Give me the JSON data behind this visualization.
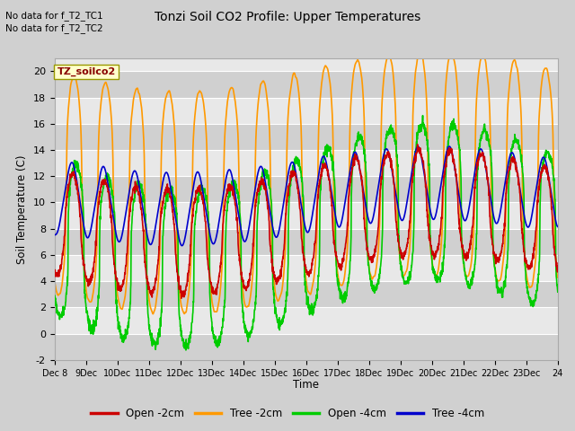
{
  "title": "Tonzi Soil CO2 Profile: Upper Temperatures",
  "ylabel": "Soil Temperature (C)",
  "xlabel": "Time",
  "note1": "No data for f_T2_TC1",
  "note2": "No data for f_T2_TC2",
  "dataset_label": "TZ_soilco2",
  "ylim": [
    -2,
    21
  ],
  "yticks": [
    -2,
    0,
    2,
    4,
    6,
    8,
    10,
    12,
    14,
    16,
    18,
    20
  ],
  "colors": {
    "open_2cm": "#cc0000",
    "tree_2cm": "#ff9900",
    "open_4cm": "#00cc00",
    "tree_4cm": "#0000cc"
  },
  "n_days": 16,
  "ppd": 144,
  "fig_bg": "#d0d0d0",
  "plot_bg": "#e8e8e8",
  "band_color": "#d0d0d0"
}
